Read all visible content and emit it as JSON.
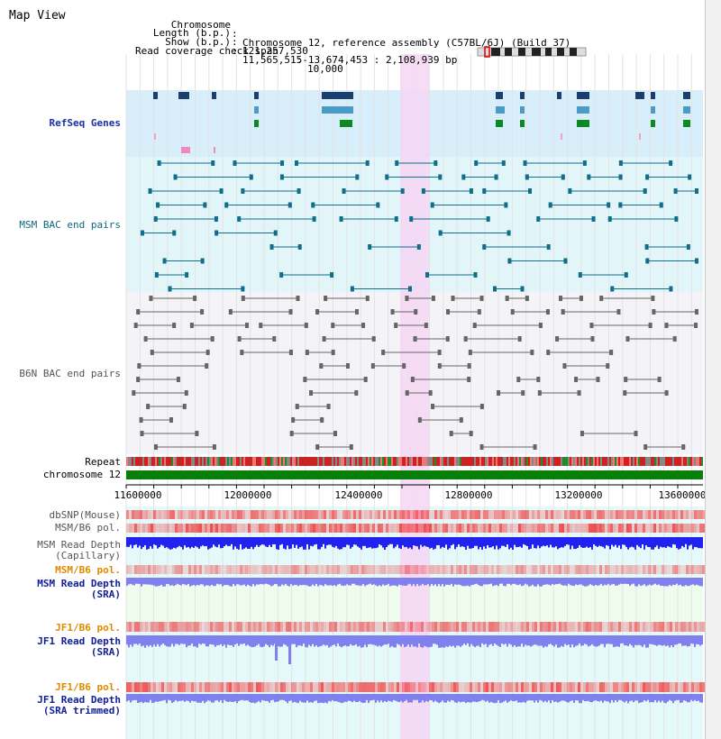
{
  "view": {
    "title": "Map View",
    "info": [
      {
        "key": "Chromosome",
        "value": "Chromosome 12, reference assembly (C57BL/6J) (Build 37)"
      },
      {
        "key": "Length (b.p.)",
        "value": "121,257,530"
      },
      {
        "key": "Show (b.p.)",
        "value": "11,565,515-13,674,453 : 2,108,939 bp"
      },
      {
        "key": "Read coverage check span",
        "value": "10,000"
      }
    ]
  },
  "tracks": {
    "refseq": "RefSeq Genes",
    "msm_bac": "MSM BAC end pairs",
    "b6n_bac": "B6N BAC end pairs",
    "repeat": "Repeat",
    "chromosome": "chromosome 12",
    "dbsnp": "dbSNP(Mouse)",
    "msm_b6_pol_1": "MSM/B6 pol.",
    "msm_depth_cap": "MSM Read Depth\n(Capillary)",
    "msm_b6_pol_2": "MSM/B6 pol.",
    "msm_depth_sra": "MSM Read Depth\n(SRA)",
    "jf1_b6_pol_1": "JF1/B6 pol.",
    "jf1_depth_sra": "JF1 Read Depth\n(SRA)",
    "jf1_b6_pol_2": "JF1/B6 pol.",
    "jf1_depth_trim": "JF1 Read Depth\n(SRA trimmed)"
  },
  "axis": {
    "ticks": [
      "11600000",
      "12000000",
      "12400000",
      "12800000",
      "13200000",
      "13600000"
    ]
  },
  "colors": {
    "refseq_bg": "#d8eefa",
    "msm_bg": "#e2f6fa",
    "b6n_bg": "#f4f4f8",
    "highlight": "#f6d6f3",
    "chromosome": "#087f0a",
    "snp": "#ee4444",
    "msm_depth": "#2222ee",
    "sra_depth": "#8080ee"
  }
}
